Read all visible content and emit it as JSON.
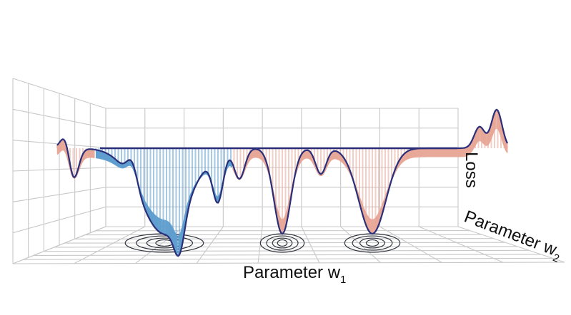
{
  "chart_data": {
    "type": "surface",
    "title": "",
    "xlabel": {
      "text": "Parameter w",
      "subscript": "1"
    },
    "ylabel": {
      "text": "Parameter w",
      "subscript": "2"
    },
    "zlabel": "Loss",
    "grid": true,
    "contours_on_floor": true,
    "colors": {
      "surface_front": "#e8a898",
      "surface_back": "#5f9ecf",
      "mesh_line": "#2b2f7a",
      "grid": "#c8c8c8",
      "contour": "#33363f"
    },
    "minima": [
      {
        "name": "wide-basin",
        "w1": -0.55,
        "depth": 1.0,
        "width": 0.16,
        "color": "back"
      },
      {
        "name": "narrow-basin-center",
        "w1": 0.0,
        "depth": 1.0,
        "width": 0.055,
        "color": "front"
      },
      {
        "name": "basin-right",
        "w1": 0.42,
        "depth": 1.0,
        "width": 0.09,
        "color": "front"
      }
    ],
    "secondary_dips": [
      {
        "w1": -0.98,
        "depth": 0.55
      },
      {
        "w1": -0.48,
        "depth": 0.42
      },
      {
        "w1": -0.3,
        "depth": 0.55
      },
      {
        "w1": -0.2,
        "depth": 0.35
      },
      {
        "w1": 0.18,
        "depth": 0.3
      }
    ],
    "peaks": [
      {
        "w1": -1.0,
        "height": 0.35
      },
      {
        "w1": -0.7,
        "height": 0.25
      },
      {
        "w1": 0.92,
        "height": 0.25
      },
      {
        "w1": 1.0,
        "height": 0.45
      }
    ]
  }
}
